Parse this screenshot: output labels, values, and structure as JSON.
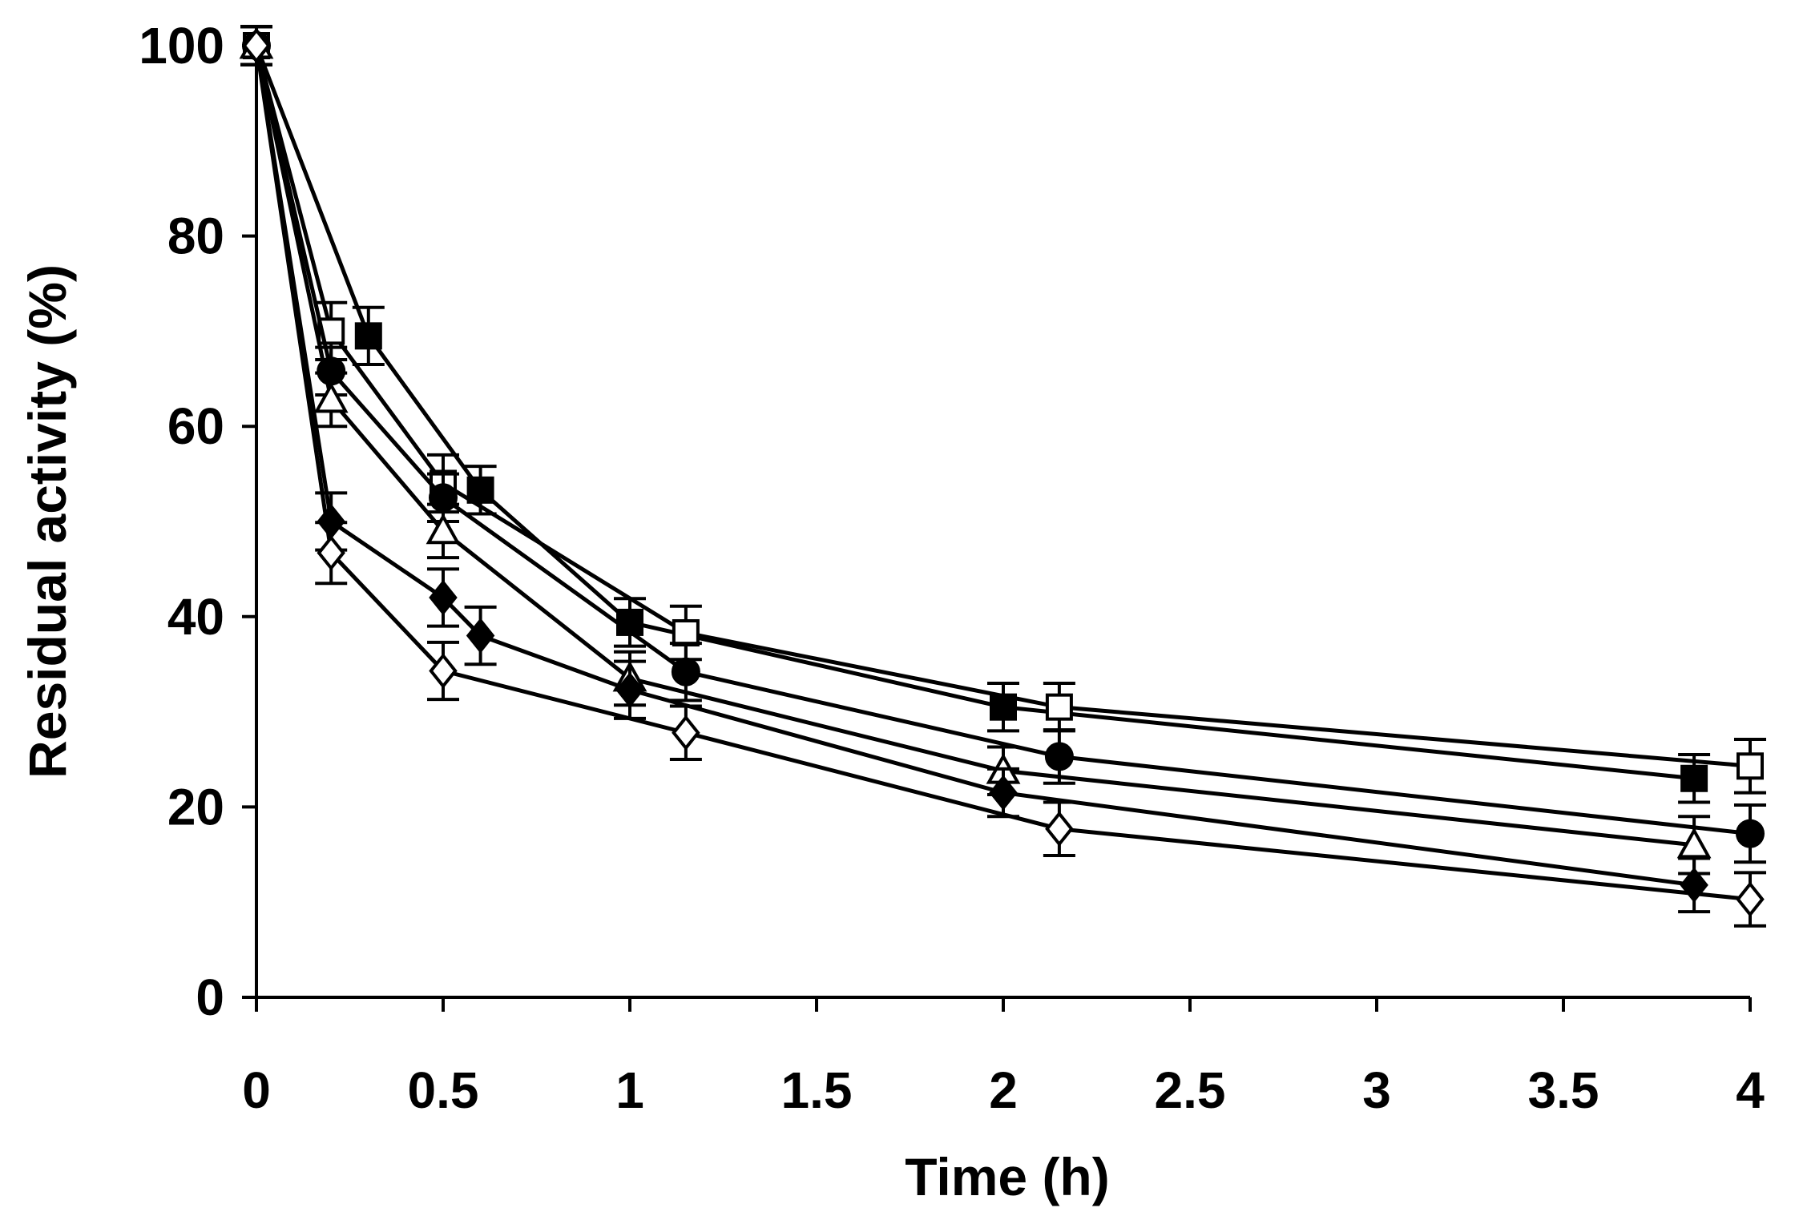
{
  "chart_data": {
    "type": "line",
    "title": "",
    "xlabel": "Time (h)",
    "ylabel": "Residual activity (%)",
    "xlim": [
      0,
      4
    ],
    "ylim": [
      0,
      100
    ],
    "x_ticks": [
      "0",
      "0.5",
      "1",
      "1.5",
      "2",
      "2.5",
      "3",
      "3.5",
      "4"
    ],
    "y_ticks": [
      "0",
      "20",
      "40",
      "60",
      "80",
      "100"
    ],
    "x_tick_values": [
      0,
      0.5,
      1,
      1.5,
      2,
      2.5,
      3,
      3.5,
      4
    ],
    "y_tick_values": [
      0,
      20,
      40,
      60,
      80,
      100
    ],
    "grid": false,
    "legend": "none",
    "series": [
      {
        "name": "filled-square",
        "marker": "square",
        "fill": "#000000",
        "x": [
          0,
          0.3,
          0.6,
          1.0,
          2.0,
          3.85
        ],
        "y": [
          100,
          69.5,
          53.3,
          39.4,
          30.5,
          23.0
        ],
        "err": [
          2,
          3,
          2.5,
          2.5,
          2.5,
          2.5
        ]
      },
      {
        "name": "open-square",
        "marker": "square",
        "fill": "#ffffff",
        "x": [
          0,
          0.2,
          0.5,
          1.15,
          2.15,
          4.0
        ],
        "y": [
          100,
          70.0,
          54.0,
          38.3,
          30.5,
          24.3
        ],
        "err": [
          2,
          3,
          3,
          2.8,
          2.5,
          2.8
        ]
      },
      {
        "name": "filled-circle",
        "marker": "circle",
        "fill": "#000000",
        "x": [
          0,
          0.2,
          0.5,
          1.15,
          2.15,
          4.0
        ],
        "y": [
          100,
          65.8,
          52.5,
          34.2,
          25.3,
          17.2
        ],
        "err": [
          2,
          2.5,
          2.5,
          3,
          2.8,
          3
        ]
      },
      {
        "name": "open-triangle",
        "marker": "triangle",
        "fill": "#ffffff",
        "x": [
          0,
          0.2,
          0.5,
          1.0,
          2.0,
          3.85
        ],
        "y": [
          100,
          62.8,
          49.0,
          33.5,
          23.8,
          16.0
        ],
        "err": [
          2,
          2.8,
          2.8,
          2.8,
          2.5,
          3
        ]
      },
      {
        "name": "filled-diamond",
        "marker": "diamond",
        "fill": "#000000",
        "x": [
          0,
          0.2,
          0.5,
          0.6,
          1.0,
          2.0,
          3.85
        ],
        "y": [
          100,
          50.0,
          42.0,
          38.0,
          32.3,
          21.5,
          11.8
        ],
        "err": [
          2,
          3,
          3,
          3,
          3,
          2.5,
          2.8
        ]
      },
      {
        "name": "open-diamond",
        "marker": "diamond",
        "fill": "#ffffff",
        "x": [
          0,
          0.2,
          0.5,
          1.15,
          2.15,
          4.0
        ],
        "y": [
          100,
          46.7,
          34.3,
          27.8,
          17.7,
          10.3
        ],
        "err": [
          2,
          3.2,
          3,
          2.8,
          2.8,
          2.8
        ]
      }
    ]
  }
}
